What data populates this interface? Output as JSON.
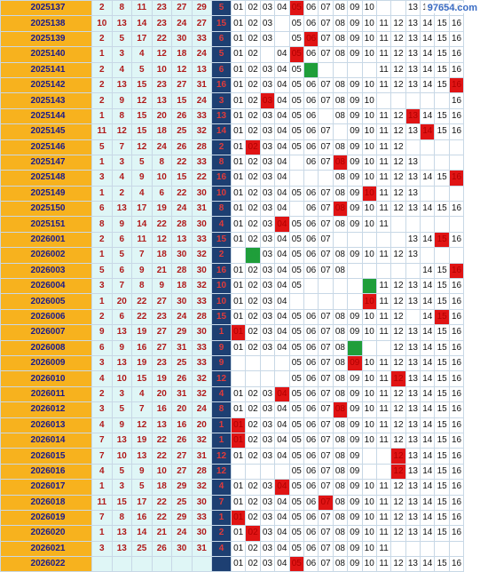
{
  "watermark": "97654.com",
  "rows": [
    {
      "issue": "2025137",
      "reds": [
        "2",
        "8",
        "11",
        "23",
        "27",
        "29"
      ],
      "blue": "5",
      "hits": [
        5
      ],
      "green": [],
      "blank": [
        11,
        12
      ]
    },
    {
      "issue": "2025138",
      "reds": [
        "10",
        "13",
        "14",
        "23",
        "24",
        "27"
      ],
      "blue": "15",
      "hits": [],
      "green": [],
      "blank": [
        4
      ]
    },
    {
      "issue": "2025139",
      "reds": [
        "2",
        "5",
        "17",
        "22",
        "30",
        "33"
      ],
      "blue": "6",
      "hits": [
        6
      ],
      "green": [],
      "blank": [
        4
      ]
    },
    {
      "issue": "2025140",
      "reds": [
        "1",
        "3",
        "4",
        "12",
        "18",
        "24"
      ],
      "blue": "5",
      "hits": [
        5
      ],
      "green": [],
      "blank": [
        3
      ]
    },
    {
      "issue": "2025141",
      "reds": [
        "2",
        "4",
        "5",
        "10",
        "12",
        "13"
      ],
      "blue": "6",
      "hits": [],
      "green": [
        6
      ],
      "blank": [
        7,
        8,
        9,
        10
      ]
    },
    {
      "issue": "2025142",
      "reds": [
        "2",
        "13",
        "15",
        "23",
        "27",
        "31"
      ],
      "blue": "16",
      "hits": [
        16
      ],
      "green": [],
      "blank": []
    },
    {
      "issue": "2025143",
      "reds": [
        "2",
        "9",
        "12",
        "13",
        "15",
        "24"
      ],
      "blue": "3",
      "hits": [
        3
      ],
      "green": [],
      "blank": [
        11,
        12,
        13,
        14,
        15
      ]
    },
    {
      "issue": "2025144",
      "reds": [
        "1",
        "8",
        "15",
        "20",
        "26",
        "33"
      ],
      "blue": "13",
      "hits": [
        13
      ],
      "green": [],
      "blank": [
        7
      ]
    },
    {
      "issue": "2025145",
      "reds": [
        "11",
        "12",
        "15",
        "18",
        "25",
        "32"
      ],
      "blue": "14",
      "hits": [
        14
      ],
      "green": [],
      "blank": [
        8
      ]
    },
    {
      "issue": "2025146",
      "reds": [
        "5",
        "7",
        "12",
        "24",
        "26",
        "28"
      ],
      "blue": "2",
      "hits": [
        2
      ],
      "green": [],
      "blank": [
        13,
        14,
        15,
        16
      ]
    },
    {
      "issue": "2025147",
      "reds": [
        "1",
        "3",
        "5",
        "8",
        "22",
        "33"
      ],
      "blue": "8",
      "hits": [
        8
      ],
      "green": [],
      "blank": [
        5,
        14,
        15,
        16
      ]
    },
    {
      "issue": "2025148",
      "reds": [
        "3",
        "4",
        "9",
        "10",
        "15",
        "22"
      ],
      "blue": "16",
      "hits": [
        16
      ],
      "green": [],
      "blank": [
        5,
        6,
        7
      ]
    },
    {
      "issue": "2025149",
      "reds": [
        "1",
        "2",
        "4",
        "6",
        "22",
        "30"
      ],
      "blue": "10",
      "hits": [
        10
      ],
      "green": [],
      "blank": [
        14,
        15,
        16
      ]
    },
    {
      "issue": "2025150",
      "reds": [
        "6",
        "13",
        "17",
        "19",
        "24",
        "31"
      ],
      "blue": "8",
      "hits": [
        8
      ],
      "green": [],
      "blank": [
        5
      ]
    },
    {
      "issue": "2025151",
      "reds": [
        "8",
        "9",
        "14",
        "22",
        "28",
        "30"
      ],
      "blue": "4",
      "hits": [
        4
      ],
      "green": [],
      "blank": [
        12,
        13,
        14,
        15,
        16
      ]
    },
    {
      "issue": "2026001",
      "reds": [
        "2",
        "6",
        "11",
        "12",
        "13",
        "33"
      ],
      "blue": "15",
      "hits": [
        15
      ],
      "green": [],
      "blank": [
        8,
        9,
        10,
        11,
        12
      ]
    },
    {
      "issue": "2026002",
      "reds": [
        "1",
        "5",
        "7",
        "18",
        "30",
        "32"
      ],
      "blue": "2",
      "hits": [],
      "green": [
        2
      ],
      "blank": [
        1,
        14,
        15,
        16
      ]
    },
    {
      "issue": "2026003",
      "reds": [
        "5",
        "6",
        "9",
        "21",
        "28",
        "30"
      ],
      "blue": "16",
      "hits": [
        16
      ],
      "green": [],
      "blank": [
        9,
        10,
        11,
        12,
        13
      ]
    },
    {
      "issue": "2026004",
      "reds": [
        "3",
        "7",
        "8",
        "9",
        "18",
        "32"
      ],
      "blue": "10",
      "hits": [],
      "green": [
        10
      ],
      "blank": [
        6,
        7,
        8,
        9
      ]
    },
    {
      "issue": "2026005",
      "reds": [
        "1",
        "20",
        "22",
        "27",
        "30",
        "33"
      ],
      "blue": "10",
      "hits": [
        10
      ],
      "green": [],
      "blank": [
        5,
        6,
        7,
        8,
        9
      ]
    },
    {
      "issue": "2026006",
      "reds": [
        "2",
        "6",
        "22",
        "23",
        "24",
        "28"
      ],
      "blue": "15",
      "hits": [
        15
      ],
      "green": [],
      "blank": [
        13
      ]
    },
    {
      "issue": "2026007",
      "reds": [
        "9",
        "13",
        "19",
        "27",
        "29",
        "30"
      ],
      "blue": "1",
      "hits": [
        1
      ],
      "green": [],
      "blank": []
    },
    {
      "issue": "2026008",
      "reds": [
        "6",
        "9",
        "16",
        "27",
        "31",
        "33"
      ],
      "blue": "9",
      "hits": [],
      "green": [
        9
      ],
      "blank": [
        10,
        11
      ]
    },
    {
      "issue": "2026009",
      "reds": [
        "3",
        "13",
        "19",
        "23",
        "25",
        "33"
      ],
      "blue": "9",
      "hits": [
        9
      ],
      "green": [],
      "blank": [
        1,
        2,
        3,
        4
      ]
    },
    {
      "issue": "2026010",
      "reds": [
        "4",
        "10",
        "15",
        "19",
        "26",
        "32"
      ],
      "blue": "12",
      "hits": [
        12
      ],
      "green": [],
      "blank": [
        1,
        2,
        3,
        4
      ]
    },
    {
      "issue": "2026011",
      "reds": [
        "2",
        "3",
        "4",
        "20",
        "31",
        "32"
      ],
      "blue": "4",
      "hits": [
        4
      ],
      "green": [],
      "blank": []
    },
    {
      "issue": "2026012",
      "reds": [
        "3",
        "5",
        "7",
        "16",
        "20",
        "24"
      ],
      "blue": "8",
      "hits": [
        8
      ],
      "green": [],
      "blank": []
    },
    {
      "issue": "2026013",
      "reds": [
        "4",
        "9",
        "12",
        "13",
        "16",
        "20"
      ],
      "blue": "1",
      "hits": [
        1
      ],
      "green": [],
      "blank": []
    },
    {
      "issue": "2026014",
      "reds": [
        "7",
        "13",
        "19",
        "22",
        "26",
        "32"
      ],
      "blue": "1",
      "hits": [
        1
      ],
      "green": [],
      "blank": []
    },
    {
      "issue": "2026015",
      "reds": [
        "7",
        "10",
        "13",
        "22",
        "27",
        "31"
      ],
      "blue": "12",
      "hits": [
        12
      ],
      "green": [],
      "blank": [
        10,
        11
      ]
    },
    {
      "issue": "2026016",
      "reds": [
        "4",
        "5",
        "9",
        "10",
        "27",
        "28"
      ],
      "blue": "12",
      "hits": [
        12
      ],
      "green": [],
      "blank": [
        1,
        2,
        3,
        4,
        10,
        11
      ]
    },
    {
      "issue": "2026017",
      "reds": [
        "1",
        "3",
        "5",
        "18",
        "29",
        "32"
      ],
      "blue": "4",
      "hits": [
        4
      ],
      "green": [],
      "blank": []
    },
    {
      "issue": "2026018",
      "reds": [
        "11",
        "15",
        "17",
        "22",
        "25",
        "30"
      ],
      "blue": "7",
      "hits": [
        7
      ],
      "green": [],
      "blank": []
    },
    {
      "issue": "2026019",
      "reds": [
        "7",
        "8",
        "16",
        "22",
        "29",
        "33"
      ],
      "blue": "1",
      "hits": [
        1
      ],
      "green": [],
      "blank": []
    },
    {
      "issue": "2026020",
      "reds": [
        "1",
        "13",
        "14",
        "21",
        "24",
        "30"
      ],
      "blue": "2",
      "hits": [
        2
      ],
      "green": [],
      "blank": []
    },
    {
      "issue": "2026021",
      "reds": [
        "3",
        "13",
        "25",
        "26",
        "30",
        "31"
      ],
      "blue": "4",
      "hits": [],
      "green": [],
      "blank": [
        12,
        13,
        14,
        15,
        16
      ]
    },
    {
      "issue": "2026022",
      "reds": [
        "",
        "",
        "",
        "",
        "",
        ""
      ],
      "blue": "",
      "hits": [
        5
      ],
      "green": [],
      "blank": []
    }
  ]
}
